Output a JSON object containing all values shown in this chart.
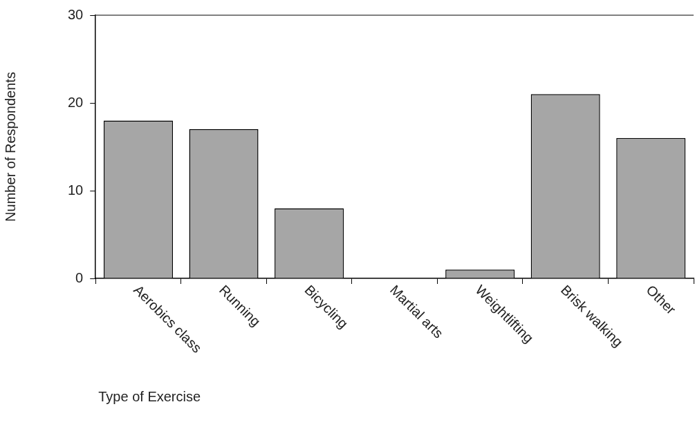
{
  "chart_data": {
    "type": "bar",
    "xlabel": "Type of Exercise",
    "ylabel": "Number of Respondents",
    "categories": [
      "Aerobics class",
      "Running",
      "Bicycling",
      "Martial arts",
      "Weightlifting",
      "Brisk walking",
      "Other"
    ],
    "values": [
      18,
      17,
      8,
      0,
      1,
      21,
      16
    ],
    "color": "#a6a6a6",
    "ylim": [
      0,
      30
    ],
    "yticks": [
      0,
      10,
      20,
      30
    ],
    "grid": false,
    "legend": false
  }
}
